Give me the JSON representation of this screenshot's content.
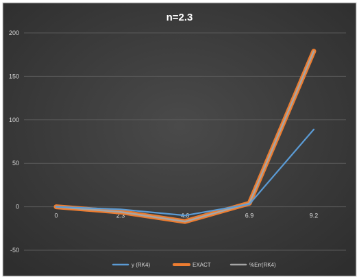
{
  "chart_data": {
    "type": "line",
    "title": "n=2.3",
    "categories": [
      "0",
      "2.3",
      "4.6",
      "6.9",
      "9.2"
    ],
    "x": [
      0,
      2.3,
      4.6,
      6.9,
      9.2
    ],
    "ylim": [
      -50,
      200
    ],
    "yticks": [
      -50,
      0,
      50,
      100,
      150,
      200
    ],
    "grid": true,
    "legend": "bottom",
    "series": [
      {
        "name": "y (RK4)",
        "color": "#5b9bd5",
        "values": [
          0,
          -3,
          -10,
          3,
          89
        ]
      },
      {
        "name": "%Err(RK4)",
        "color": "#a5a5a5",
        "values": [
          0,
          -6,
          -17,
          4,
          179
        ]
      },
      {
        "name": "EXACT",
        "color": "#ed7d31",
        "values": [
          0,
          -6,
          -17,
          4,
          179
        ]
      }
    ],
    "legend_order": [
      "y (RK4)",
      "EXACT",
      "%Err(RK4)"
    ]
  },
  "colors": {
    "background": "#404040",
    "gridline": "#5a5a5a",
    "text": "#d9d9d9"
  }
}
